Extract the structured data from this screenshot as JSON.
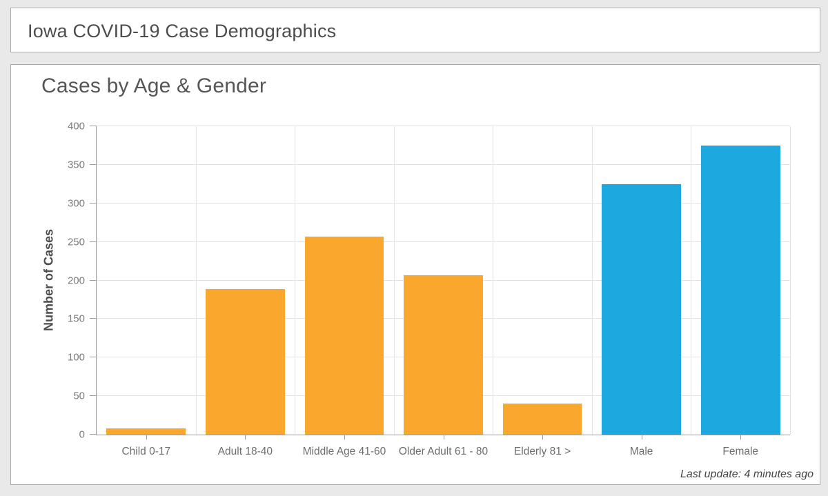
{
  "header": {
    "title": "Iowa COVID-19 Case Demographics"
  },
  "chart_panel": {
    "title": "Cases by Age & Gender",
    "last_update": "Last update: 4 minutes ago"
  },
  "chart_data": {
    "type": "bar",
    "title": "Cases by Age & Gender",
    "categories": [
      "Child 0-17",
      "Adult 18-40",
      "Middle Age 41-60",
      "Older Adult 61 - 80",
      "Elderly 81 >",
      "Male",
      "Female"
    ],
    "values": [
      8,
      189,
      257,
      207,
      40,
      325,
      375
    ],
    "bar_colors": [
      "#FAA72E",
      "#FAA72E",
      "#FAA72E",
      "#FAA72E",
      "#FAA72E",
      "#1EA8E0",
      "#1EA8E0"
    ],
    "xlabel": "",
    "ylabel": "Number of Cases",
    "ylim": [
      0,
      400
    ],
    "yticks": [
      0,
      50,
      100,
      150,
      200,
      250,
      300,
      350,
      400
    ],
    "grid": true,
    "legend": "none"
  },
  "theme": {
    "page_bg": "#e9e9e9",
    "panel_bg": "#ffffff",
    "panel_border": "#ababab",
    "axis_line": "#9b9b9b",
    "grid_line": "#e3e3e3",
    "age_bar_color": "#FAA72E",
    "gender_bar_color": "#1EA8E0"
  }
}
